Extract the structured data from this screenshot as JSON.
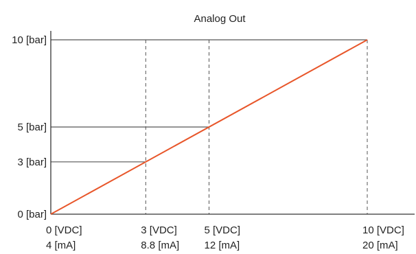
{
  "chart_data": {
    "type": "line",
    "title": "Analog Out",
    "x": [
      0,
      10
    ],
    "xlim": [
      0,
      10
    ],
    "ylim": [
      0,
      10
    ],
    "x_ticks": [
      {
        "value": 0,
        "label_top": "0 [VDC]",
        "label_bottom": "4 [mA]"
      },
      {
        "value": 3,
        "label_top": "3 [VDC]",
        "label_bottom": "8.8 [mA]"
      },
      {
        "value": 5,
        "label_top": "5 [VDC]",
        "label_bottom": "12 [mA]"
      },
      {
        "value": 10,
        "label_top": "10 [VDC]",
        "label_bottom": "20 [mA]"
      }
    ],
    "y_ticks": [
      {
        "value": 0,
        "label": "0 [bar]"
      },
      {
        "value": 3,
        "label": "3 [bar]"
      },
      {
        "value": 5,
        "label": "5 [bar]"
      },
      {
        "value": 10,
        "label": "10 [bar]"
      }
    ],
    "series": [
      {
        "values": [
          0,
          10
        ],
        "color": "#e8562a"
      }
    ],
    "reference_points": [
      {
        "x": 3,
        "y": 3
      },
      {
        "x": 5,
        "y": 5
      },
      {
        "x": 10,
        "y": 10
      }
    ],
    "colors": {
      "line": "#e8562a",
      "axis": "#333333",
      "guide": "#555555"
    },
    "grid": false,
    "legend": "none"
  }
}
